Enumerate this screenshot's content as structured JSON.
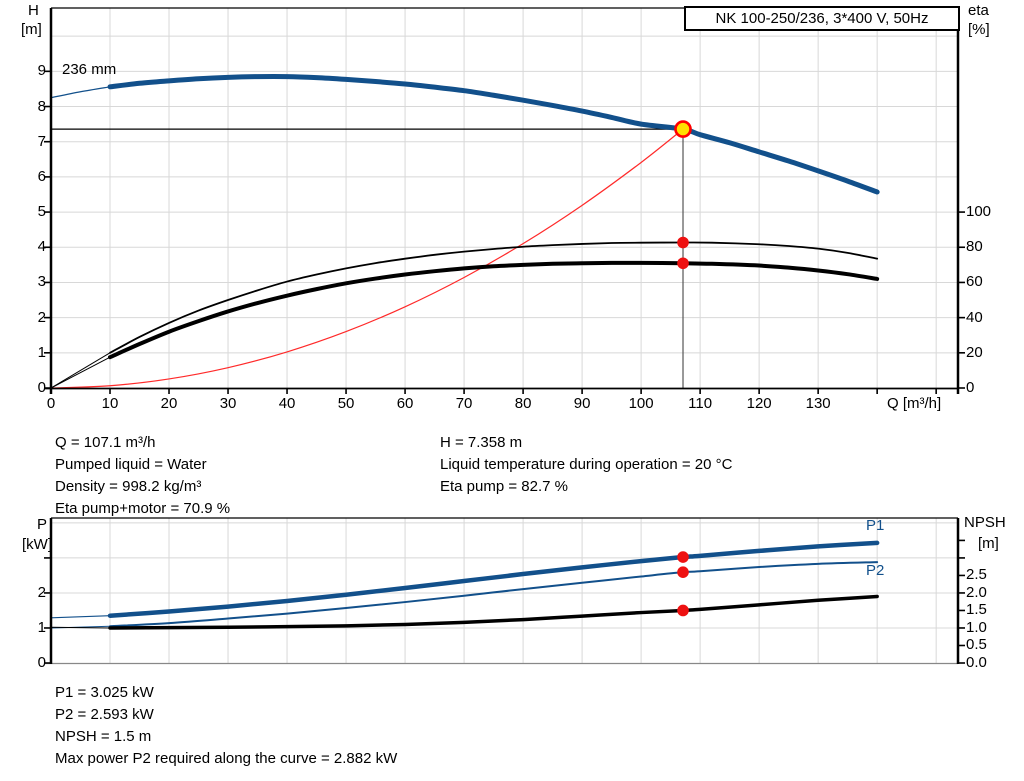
{
  "title_box": {
    "label": "NK 100-250/236, 3*400 V, 50Hz"
  },
  "top_chart": {
    "left_axis_title_line1": "H",
    "left_axis_title_line2": "[m]",
    "right_axis_title_line1": "eta",
    "right_axis_title_line2": "[%]",
    "x_axis_title": "Q [m³/h]",
    "impeller_label": "236 mm"
  },
  "bottom_chart": {
    "left_axis_title_line1": "P",
    "left_axis_title_line2": "[kW]",
    "right_axis_title_line1": "NPSH",
    "right_axis_title_line2": "[m]",
    "p1_label": "P1",
    "p2_label": "P2"
  },
  "info_top_left": [
    "Q = 107.1 m³/h",
    "Pumped liquid = Water",
    "Density = 998.2 kg/m³",
    "Eta pump+motor = 70.9 %"
  ],
  "info_top_right": [
    "H = 7.358 m",
    "Liquid temperature during operation = 20 °C",
    "Eta pump = 82.7 %"
  ],
  "info_bottom": [
    "P1 = 3.025 kW",
    "P2 = 2.593 kW",
    "NPSH = 1.5 m",
    "Max power P2 required along the curve = 2.882 kW"
  ],
  "duty_point": {
    "q": 107.1,
    "h": 7.358,
    "eta_pump": 82.7,
    "eta_pump_motor": 70.9,
    "p1": 3.025,
    "p2": 2.593,
    "npsh": 1.5
  },
  "colors": {
    "curve_blue": "#12508b",
    "curve_black": "#000000",
    "system_red": "#ff2a2a",
    "dot_red": "#ee1111",
    "duty_fill": "#ffe000",
    "duty_ring": "#ff0000",
    "grid": "#d8d8d8",
    "axis": "#000000",
    "ref_h": "#000000",
    "ref_v": "#555555",
    "bottom_axis_gray": "#888888"
  },
  "chart_data": [
    {
      "type": "line",
      "title": "NK 100-250/236, 3*400 V, 50Hz",
      "xlabel": "Q [m³/h]",
      "ylabel": "H [m]",
      "y2label": "eta [%]",
      "xlim": [
        0,
        153.7
      ],
      "ylim": [
        0,
        10.8
      ],
      "y2lim": [
        0,
        216
      ],
      "grid": true,
      "legend_position": "none",
      "x_ticks": [
        0,
        10,
        20,
        30,
        40,
        50,
        60,
        70,
        80,
        90,
        100,
        110,
        120,
        130
      ],
      "x_ticks_unlabeled": [
        140,
        150
      ],
      "y_ticks": [
        0,
        1,
        2,
        3,
        4,
        5,
        6,
        7,
        8,
        9
      ],
      "y_ticks_unlabeled": [],
      "y_gridlines": [
        1,
        2,
        3,
        4,
        5,
        6,
        7,
        8,
        9,
        10
      ],
      "y2_ticks": [
        0,
        20,
        40,
        60,
        80,
        100
      ],
      "y2_ticks_unlabeled": [],
      "series": [
        {
          "name": "system-curve",
          "axis": "y",
          "color": "#ff2a2a",
          "width": 1.2,
          "points": [
            [
              0,
              0
            ],
            [
              10,
              0.064
            ],
            [
              20,
              0.257
            ],
            [
              30,
              0.577
            ],
            [
              40,
              1.026
            ],
            [
              50,
              1.603
            ],
            [
              60,
              2.308
            ],
            [
              70,
              3.141
            ],
            [
              80,
              4.103
            ],
            [
              90,
              5.192
            ],
            [
              100,
              6.41
            ],
            [
              107.1,
              7.358
            ]
          ]
        },
        {
          "name": "eta-pump-motor",
          "axis": "y2",
          "color": "#000000",
          "width": 4,
          "lead": [
            [
              0,
              0
            ],
            [
              10,
              17.5
            ]
          ],
          "points": [
            [
              10,
              17.5
            ],
            [
              15,
              25
            ],
            [
              20,
              32
            ],
            [
              25,
              38
            ],
            [
              30,
              43.5
            ],
            [
              35,
              48.3
            ],
            [
              40,
              52.5
            ],
            [
              45,
              56.2
            ],
            [
              50,
              59.5
            ],
            [
              55,
              62.2
            ],
            [
              60,
              64.5
            ],
            [
              65,
              66.4
            ],
            [
              70,
              68
            ],
            [
              75,
              69.2
            ],
            [
              80,
              70
            ],
            [
              85,
              70.6
            ],
            [
              90,
              70.9
            ],
            [
              95,
              71.1
            ],
            [
              100,
              71.1
            ],
            [
              107.1,
              70.9
            ],
            [
              112,
              70.6
            ],
            [
              120,
              69.6
            ],
            [
              125,
              68.4
            ],
            [
              130,
              66.8
            ],
            [
              135,
              64.7
            ],
            [
              140,
              62
            ]
          ]
        },
        {
          "name": "eta-pump",
          "axis": "y2",
          "color": "#000000",
          "width": 1.8,
          "lead": [
            [
              0,
              0
            ],
            [
              10,
              20
            ]
          ],
          "points": [
            [
              10,
              20
            ],
            [
              15,
              29
            ],
            [
              20,
              37
            ],
            [
              25,
              44
            ],
            [
              30,
              50
            ],
            [
              35,
              55.5
            ],
            [
              40,
              60.5
            ],
            [
              45,
              64.5
            ],
            [
              50,
              68
            ],
            [
              55,
              71
            ],
            [
              60,
              73.5
            ],
            [
              65,
              75.7
            ],
            [
              70,
              77.5
            ],
            [
              75,
              79
            ],
            [
              80,
              80.3
            ],
            [
              85,
              81.2
            ],
            [
              90,
              81.9
            ],
            [
              95,
              82.4
            ],
            [
              100,
              82.6
            ],
            [
              107.1,
              82.7
            ],
            [
              112,
              82.6
            ],
            [
              120,
              81.7
            ],
            [
              125,
              80.7
            ],
            [
              130,
              79.2
            ],
            [
              135,
              76.8
            ],
            [
              140,
              73.5
            ]
          ]
        },
        {
          "name": "head-236mm",
          "axis": "y",
          "color": "#12508b",
          "width": 5,
          "lead": [
            [
              0,
              8.25
            ],
            [
              5,
              8.42
            ],
            [
              10,
              8.56
            ]
          ],
          "points": [
            [
              10,
              8.56
            ],
            [
              15,
              8.66
            ],
            [
              20,
              8.73
            ],
            [
              25,
              8.79
            ],
            [
              30,
              8.83
            ],
            [
              35,
              8.85
            ],
            [
              40,
              8.85
            ],
            [
              45,
              8.82
            ],
            [
              50,
              8.77
            ],
            [
              55,
              8.71
            ],
            [
              60,
              8.64
            ],
            [
              65,
              8.55
            ],
            [
              70,
              8.45
            ],
            [
              75,
              8.32
            ],
            [
              80,
              8.18
            ],
            [
              85,
              8.03
            ],
            [
              90,
              7.87
            ],
            [
              95,
              7.69
            ],
            [
              100,
              7.5
            ],
            [
              107.1,
              7.358
            ],
            [
              110,
              7.2
            ],
            [
              115,
              6.97
            ],
            [
              120,
              6.71
            ],
            [
              125,
              6.45
            ],
            [
              130,
              6.17
            ],
            [
              135,
              5.88
            ],
            [
              140,
              5.57
            ]
          ]
        }
      ],
      "ref_lines": [
        {
          "type": "h",
          "v": 7.358,
          "q1": 0,
          "q2": 107.1
        },
        {
          "type": "v",
          "q": 107.1,
          "v1": 7.358,
          "v2": 0
        }
      ],
      "markers": [
        {
          "q": 107.1,
          "v": 82.7,
          "axis": "y2",
          "style": "dot",
          "name": "eta-pump-point"
        },
        {
          "q": 107.1,
          "v": 70.9,
          "axis": "y2",
          "style": "dot",
          "name": "eta-pump-motor-point"
        },
        {
          "q": 107.1,
          "v": 7.358,
          "axis": "y",
          "style": "duty",
          "name": "duty-point"
        }
      ]
    },
    {
      "type": "line",
      "title": "",
      "xlabel": "",
      "ylabel": "P [kW]",
      "y2label": "NPSH [m]",
      "xlim": [
        0,
        153.7
      ],
      "ylim": [
        0,
        4.14
      ],
      "y2lim": [
        0,
        4.14
      ],
      "grid": true,
      "legend_position": "inline-right",
      "x_ticks": [],
      "x_ticks_unlabeled": [],
      "y_ticks": [
        0,
        1,
        2
      ],
      "y_ticks_unlabeled": [
        3
      ],
      "y_gridlines": [
        1,
        2,
        3,
        4
      ],
      "y2_ticks": [
        0.0,
        0.5,
        1.0,
        1.5,
        2.0,
        2.5
      ],
      "y2_ticks_unlabeled": [
        3.0,
        3.5
      ],
      "series": [
        {
          "name": "P1",
          "axis": "y",
          "color": "#12508b",
          "width": 4.5,
          "lead": [
            [
              0,
              1.29
            ],
            [
              10,
              1.35
            ]
          ],
          "points": [
            [
              10,
              1.35
            ],
            [
              20,
              1.47
            ],
            [
              30,
              1.61
            ],
            [
              40,
              1.77
            ],
            [
              50,
              1.95
            ],
            [
              60,
              2.14
            ],
            [
              70,
              2.34
            ],
            [
              80,
              2.54
            ],
            [
              90,
              2.73
            ],
            [
              100,
              2.91
            ],
            [
              107.1,
              3.025
            ],
            [
              110,
              3.06
            ],
            [
              120,
              3.2
            ],
            [
              130,
              3.33
            ],
            [
              140,
              3.43
            ]
          ]
        },
        {
          "name": "P2",
          "axis": "y",
          "color": "#12508b",
          "width": 2,
          "lead": [
            [
              0,
              1.0
            ],
            [
              10,
              1.05
            ]
          ],
          "points": [
            [
              10,
              1.05
            ],
            [
              20,
              1.14
            ],
            [
              30,
              1.27
            ],
            [
              40,
              1.41
            ],
            [
              50,
              1.57
            ],
            [
              60,
              1.74
            ],
            [
              70,
              1.92
            ],
            [
              80,
              2.11
            ],
            [
              90,
              2.29
            ],
            [
              100,
              2.47
            ],
            [
              107.1,
              2.593
            ],
            [
              110,
              2.62
            ],
            [
              120,
              2.74
            ],
            [
              130,
              2.83
            ],
            [
              140,
              2.88
            ]
          ]
        },
        {
          "name": "NPSH",
          "axis": "y2",
          "color": "#000000",
          "width": 3.5,
          "lead": [
            [
              0,
              1.02
            ],
            [
              10,
              1.0
            ]
          ],
          "points": [
            [
              10,
              1.0
            ],
            [
              20,
              1.01
            ],
            [
              30,
              1.02
            ],
            [
              40,
              1.04
            ],
            [
              50,
              1.06
            ],
            [
              60,
              1.1
            ],
            [
              70,
              1.16
            ],
            [
              80,
              1.24
            ],
            [
              90,
              1.34
            ],
            [
              100,
              1.44
            ],
            [
              107.1,
              1.5
            ],
            [
              110,
              1.53
            ],
            [
              120,
              1.66
            ],
            [
              130,
              1.79
            ],
            [
              140,
              1.9
            ]
          ]
        }
      ],
      "ref_lines": [],
      "markers": [
        {
          "q": 107.1,
          "v": 3.025,
          "axis": "y",
          "style": "dot",
          "name": "p1-point"
        },
        {
          "q": 107.1,
          "v": 2.593,
          "axis": "y",
          "style": "dot",
          "name": "p2-point"
        },
        {
          "q": 107.1,
          "v": 1.5,
          "axis": "y2",
          "style": "dot",
          "name": "npsh-point"
        }
      ]
    }
  ]
}
